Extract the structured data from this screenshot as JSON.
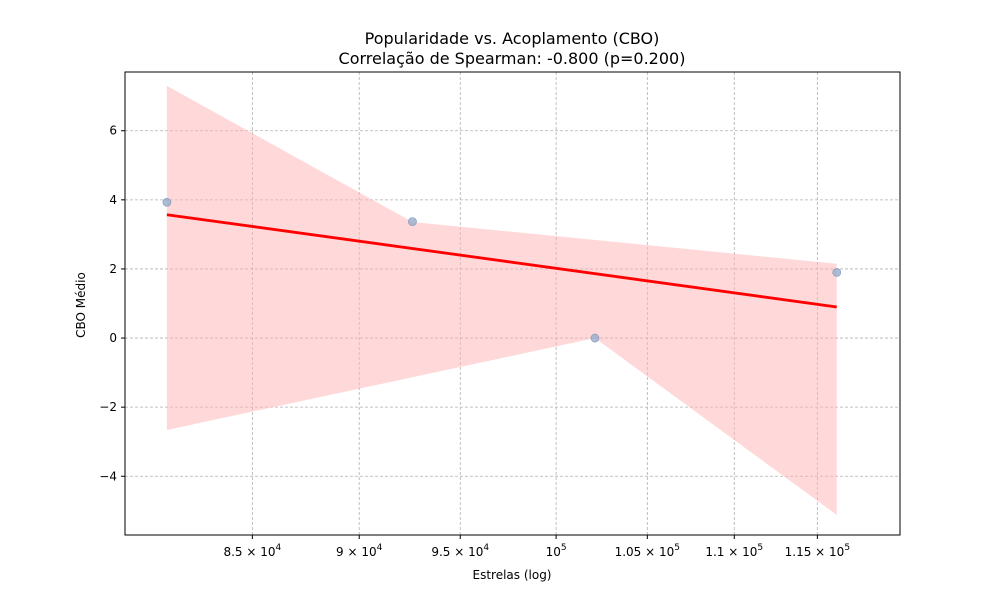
{
  "chart_data": {
    "type": "scatter",
    "title": "Popularidade vs. Acoplamento (CBO)",
    "subtitle": "Correlação de Spearman: -0.800 (p=0.200)",
    "xlabel": "Estrelas (log)",
    "ylabel": "CBO Médio",
    "xscale": "log",
    "xlim": [
      79400,
      120200
    ],
    "ylim": [
      -5.7,
      7.7
    ],
    "grid": true,
    "points": {
      "x": [
        81200,
        92600,
        102100,
        116200
      ],
      "y": [
        3.93,
        3.37,
        0.0,
        1.9
      ],
      "color": "#8fa8c8"
    },
    "regression": {
      "x": [
        81200,
        116200
      ],
      "y": [
        3.57,
        0.9
      ],
      "color": "#ff0000"
    },
    "confidence_band": {
      "color": "#ffb3b3",
      "upper": [
        [
          81200,
          7.3
        ],
        [
          92600,
          3.36
        ],
        [
          116200,
          2.15
        ]
      ],
      "lower": [
        [
          81200,
          -2.66
        ],
        [
          102100,
          0.0
        ],
        [
          116200,
          -5.12
        ]
      ]
    },
    "xticks": [
      {
        "value": 85000,
        "mantissa": "8.5",
        "base": "10",
        "exp": "4"
      },
      {
        "value": 90000,
        "mantissa": "9",
        "base": "10",
        "exp": "4"
      },
      {
        "value": 95000,
        "mantissa": "9.5",
        "base": "10",
        "exp": "4"
      },
      {
        "value": 100000,
        "mantissa": "",
        "base": "10",
        "exp": "5"
      },
      {
        "value": 105000,
        "mantissa": "1.05",
        "base": "10",
        "exp": "5"
      },
      {
        "value": 110000,
        "mantissa": "1.1",
        "base": "10",
        "exp": "5"
      },
      {
        "value": 115000,
        "mantissa": "1.15",
        "base": "10",
        "exp": "5"
      }
    ],
    "yticks": [
      {
        "value": -4,
        "label": "−4"
      },
      {
        "value": -2,
        "label": "−2"
      },
      {
        "value": 0,
        "label": "0"
      },
      {
        "value": 2,
        "label": "2"
      },
      {
        "value": 4,
        "label": "4"
      },
      {
        "value": 6,
        "label": "6"
      }
    ]
  }
}
